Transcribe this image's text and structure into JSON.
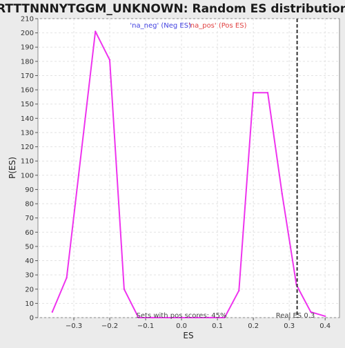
{
  "chart_data": {
    "type": "line",
    "title": "RTTTNNNYTGGM_UNKNOWN: Random ES distribution",
    "xlabel": "ES",
    "ylabel": "P(ES)",
    "xlim": [
      -0.4,
      0.44
    ],
    "ylim": [
      0,
      210
    ],
    "xticks": [
      -0.3,
      -0.2,
      -0.1,
      0.0,
      0.1,
      0.2,
      0.3,
      0.4
    ],
    "xtick_labels": [
      "−0.3",
      "−0.2",
      "−0.1",
      "0.0",
      "0.1",
      "0.2",
      "0.3",
      "0.4"
    ],
    "yticks": [
      0,
      10,
      20,
      30,
      40,
      50,
      60,
      70,
      80,
      90,
      100,
      110,
      120,
      130,
      140,
      150,
      160,
      170,
      180,
      190,
      200,
      210
    ],
    "grid": true,
    "legend": {
      "placement": "top-center",
      "entries": [
        {
          "label": "'na_neg' (Neg ES)",
          "color": "#4040e0"
        },
        {
          "label": "'na_pos' (Pos ES)",
          "color": "#e04040"
        }
      ]
    },
    "series": [
      {
        "color": "#ee33ee",
        "x": [
          -0.36,
          -0.32,
          -0.24,
          -0.2,
          -0.16,
          -0.12,
          -0.08,
          -0.04,
          0.0,
          0.04,
          0.08,
          0.12,
          0.16,
          0.2,
          0.24,
          0.28,
          0.32,
          0.36,
          0.4
        ],
        "y": [
          4,
          28,
          201,
          181,
          20,
          0,
          0,
          0,
          0,
          0,
          0,
          0,
          19,
          158,
          158,
          87,
          23,
          4,
          1
        ]
      }
    ],
    "reference_line": {
      "x": 0.322,
      "label": "Real ES 0.3",
      "color": "#333333"
    },
    "annotation": "Sets with pos scores: 45%"
  }
}
